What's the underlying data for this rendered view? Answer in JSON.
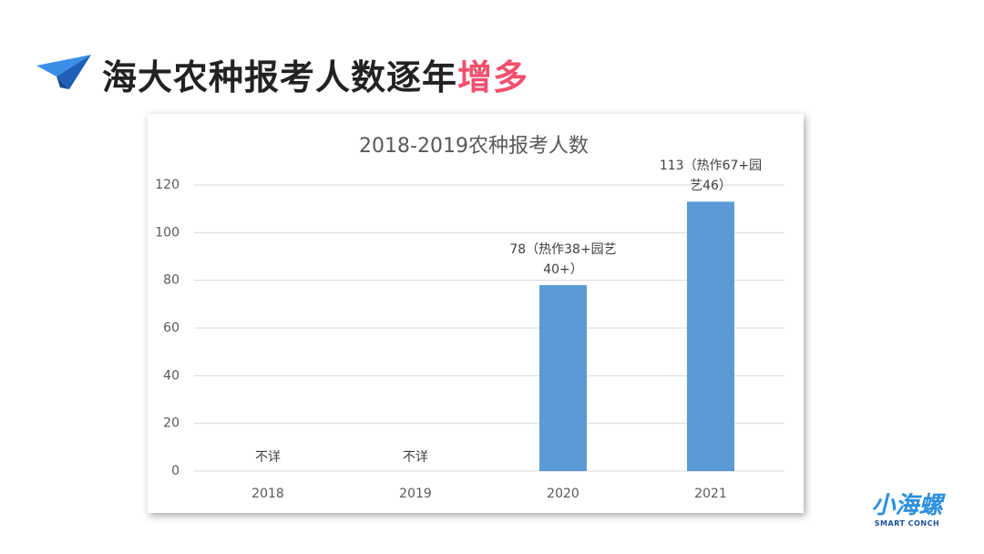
{
  "header": {
    "title": "海大农种报考人数逐年",
    "highlight": "增多"
  },
  "chart_data": {
    "type": "bar",
    "title": "2018-2019农种报考人数",
    "categories": [
      "2018",
      "2019",
      "2020",
      "2021"
    ],
    "values": [
      null,
      null,
      78,
      113
    ],
    "value_labels": [
      "不详",
      "不详",
      "78（热作38+园艺40+）",
      "113（热作67+园艺46）"
    ],
    "color": "#5b9bd5",
    "ylim": [
      0,
      120
    ],
    "yticks": [
      0,
      20,
      40,
      60,
      80,
      100,
      120
    ],
    "grid": true
  },
  "logo": {
    "name": "小海螺",
    "tagline": "SMART CONCH"
  }
}
